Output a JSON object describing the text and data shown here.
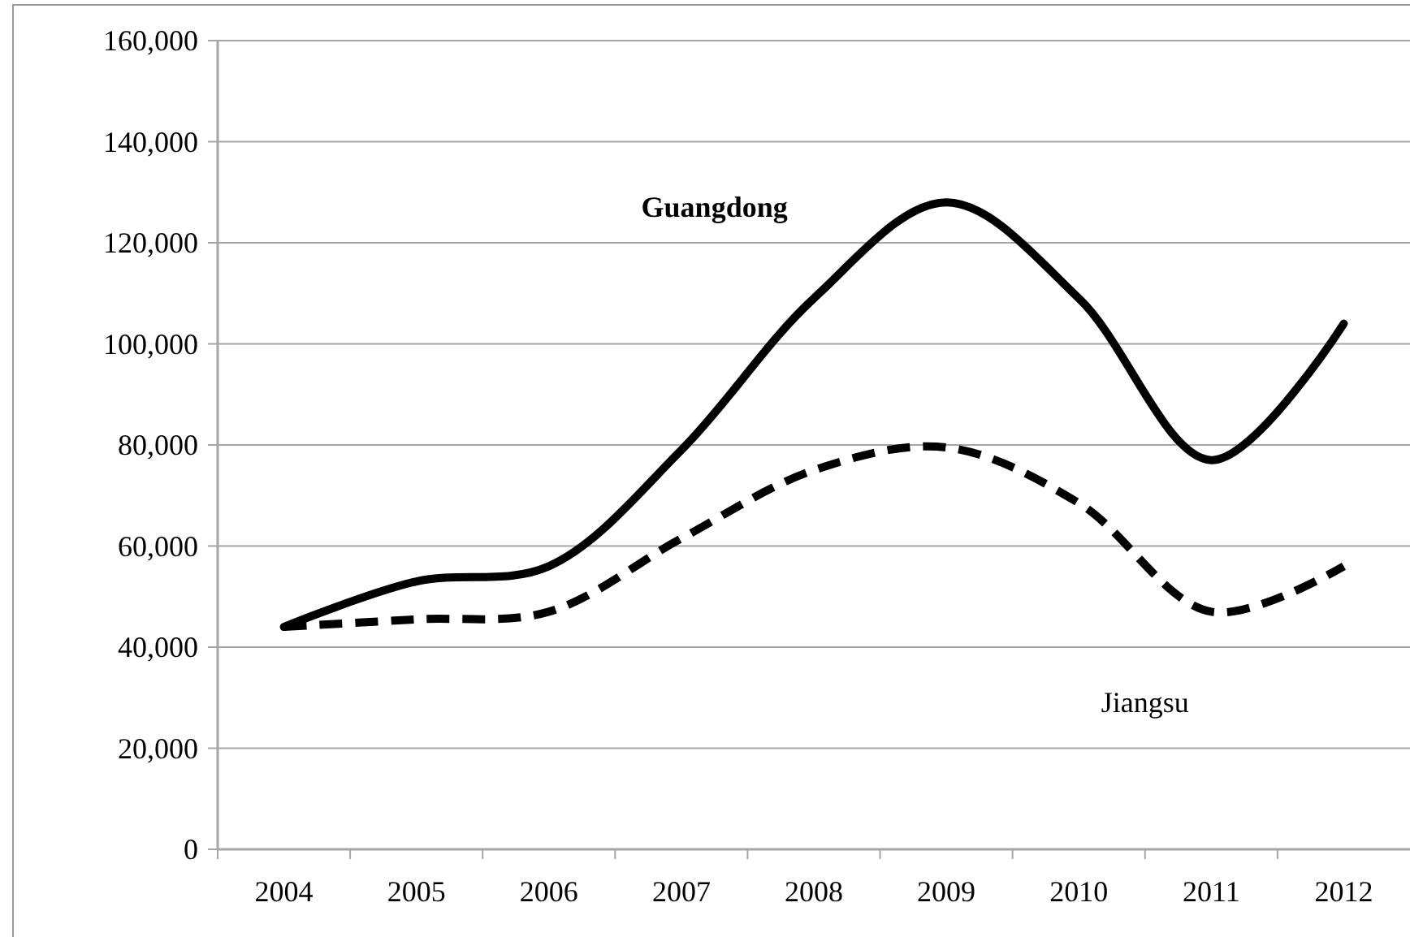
{
  "chart_data": {
    "type": "line",
    "categories": [
      "2004",
      "2005",
      "2006",
      "2007",
      "2008",
      "2009",
      "2010",
      "2011",
      "2012"
    ],
    "series": [
      {
        "name": "Guangdong",
        "color": "#000000",
        "line_style": "solid",
        "values": [
          44000,
          53000,
          56000,
          79000,
          109000,
          128000,
          109000,
          77000,
          104000
        ]
      },
      {
        "name": "Jiangsu",
        "color": "#000000",
        "line_style": "dashed",
        "values": [
          44000,
          45500,
          47000,
          61500,
          75000,
          79500,
          68500,
          47000,
          56000
        ]
      }
    ],
    "ylim": [
      0,
      160000
    ],
    "yticks": [
      {
        "value": 0,
        "label": "0"
      },
      {
        "value": 20000,
        "label": "20,000"
      },
      {
        "value": 40000,
        "label": "40,000"
      },
      {
        "value": 60000,
        "label": "60,000"
      },
      {
        "value": 80000,
        "label": "80,000"
      },
      {
        "value": 100000,
        "label": "100,000"
      },
      {
        "value": 120000,
        "label": "120,000"
      },
      {
        "value": 140000,
        "label": "140,000"
      },
      {
        "value": 160000,
        "label": "160,000"
      }
    ],
    "grid": "y",
    "marker": "none"
  }
}
